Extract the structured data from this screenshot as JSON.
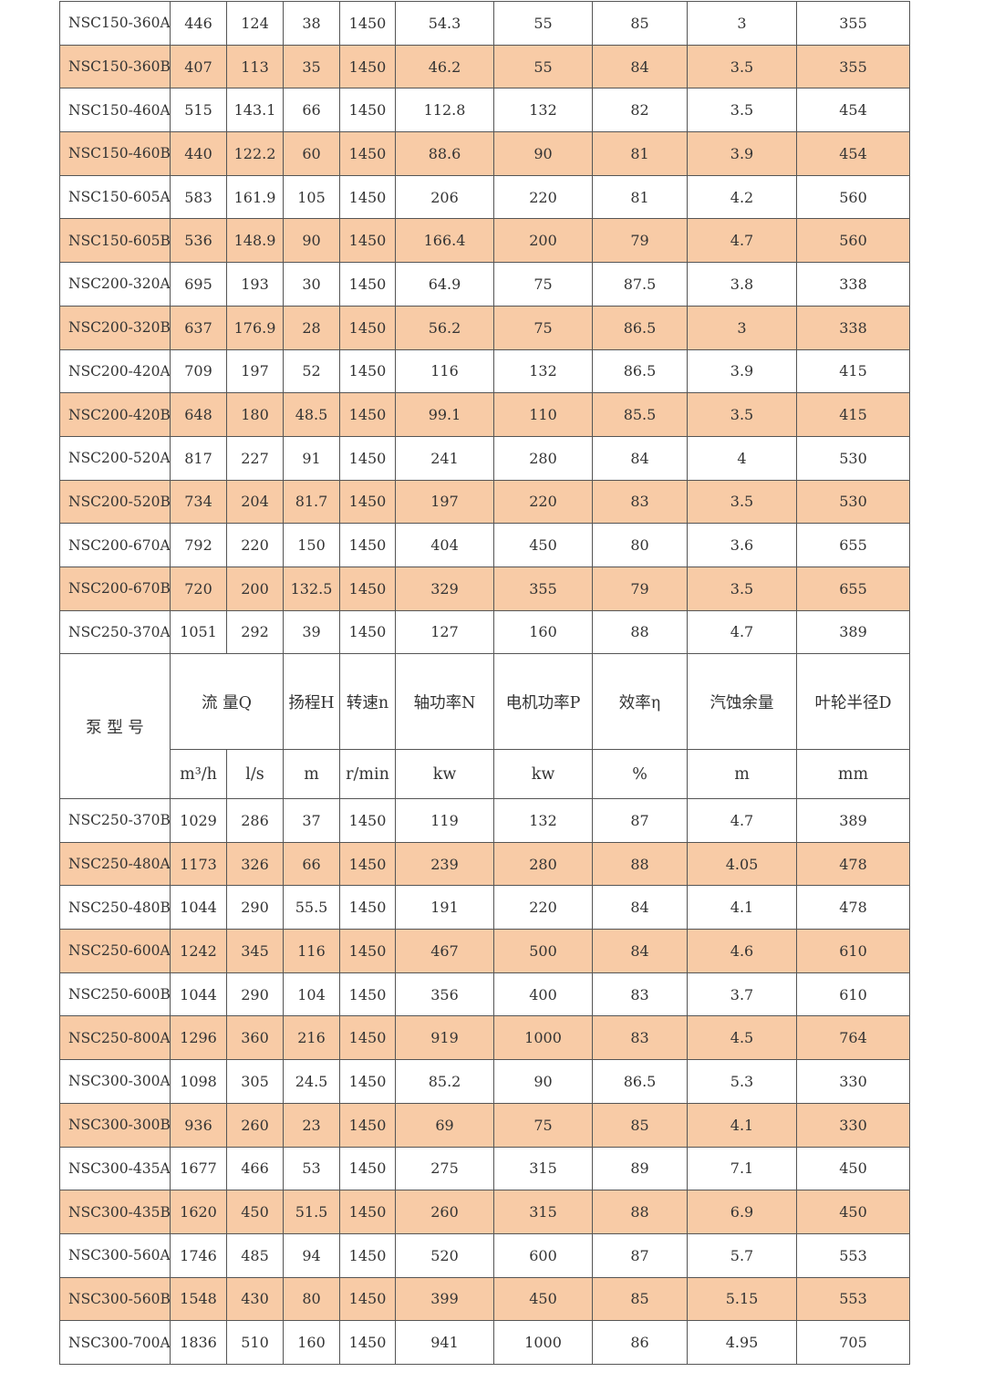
{
  "colors": {
    "alt_row": "#f8cba6",
    "border": "#555555"
  },
  "header": {
    "model": "泵 型 号",
    "flow": "流 量Q",
    "head": "扬程H",
    "speed": "转速n",
    "shaft_power": "轴功率N",
    "motor_power": "电机功率P",
    "efficiency": "效率η",
    "npsh": "汽蚀余量",
    "impeller": "叶轮半径D",
    "units": [
      "m³/h",
      "l/s",
      "m",
      "r/min",
      "kw",
      "kw",
      "%",
      "m",
      "mm"
    ]
  },
  "rows_top": [
    [
      "NSC150-360A",
      "446",
      "124",
      "38",
      "1450",
      "54.3",
      "55",
      "85",
      "3",
      "355"
    ],
    [
      "NSC150-360B",
      "407",
      "113",
      "35",
      "1450",
      "46.2",
      "55",
      "84",
      "3.5",
      "355"
    ],
    [
      "NSC150-460A",
      "515",
      "143.1",
      "66",
      "1450",
      "112.8",
      "132",
      "82",
      "3.5",
      "454"
    ],
    [
      "NSC150-460B",
      "440",
      "122.2",
      "60",
      "1450",
      "88.6",
      "90",
      "81",
      "3.9",
      "454"
    ],
    [
      "NSC150-605A",
      "583",
      "161.9",
      "105",
      "1450",
      "206",
      "220",
      "81",
      "4.2",
      "560"
    ],
    [
      "NSC150-605B",
      "536",
      "148.9",
      "90",
      "1450",
      "166.4",
      "200",
      "79",
      "4.7",
      "560"
    ],
    [
      "NSC200-320A",
      "695",
      "193",
      "30",
      "1450",
      "64.9",
      "75",
      "87.5",
      "3.8",
      "338"
    ],
    [
      "NSC200-320B",
      "637",
      "176.9",
      "28",
      "1450",
      "56.2",
      "75",
      "86.5",
      "3",
      "338"
    ],
    [
      "NSC200-420A",
      "709",
      "197",
      "52",
      "1450",
      "116",
      "132",
      "86.5",
      "3.9",
      "415"
    ],
    [
      "NSC200-420B",
      "648",
      "180",
      "48.5",
      "1450",
      "99.1",
      "110",
      "85.5",
      "3.5",
      "415"
    ],
    [
      "NSC200-520A",
      "817",
      "227",
      "91",
      "1450",
      "241",
      "280",
      "84",
      "4",
      "530"
    ],
    [
      "NSC200-520B",
      "734",
      "204",
      "81.7",
      "1450",
      "197",
      "220",
      "83",
      "3.5",
      "530"
    ],
    [
      "NSC200-670A",
      "792",
      "220",
      "150",
      "1450",
      "404",
      "450",
      "80",
      "3.6",
      "655"
    ],
    [
      "NSC200-670B",
      "720",
      "200",
      "132.5",
      "1450",
      "329",
      "355",
      "79",
      "3.5",
      "655"
    ],
    [
      "NSC250-370A",
      "1051",
      "292",
      "39",
      "1450",
      "127",
      "160",
      "88",
      "4.7",
      "389"
    ]
  ],
  "rows_bottom": [
    [
      "NSC250-370B",
      "1029",
      "286",
      "37",
      "1450",
      "119",
      "132",
      "87",
      "4.7",
      "389"
    ],
    [
      "NSC250-480A",
      "1173",
      "326",
      "66",
      "1450",
      "239",
      "280",
      "88",
      "4.05",
      "478"
    ],
    [
      "NSC250-480B",
      "1044",
      "290",
      "55.5",
      "1450",
      "191",
      "220",
      "84",
      "4.1",
      "478"
    ],
    [
      "NSC250-600A",
      "1242",
      "345",
      "116",
      "1450",
      "467",
      "500",
      "84",
      "4.6",
      "610"
    ],
    [
      "NSC250-600B",
      "1044",
      "290",
      "104",
      "1450",
      "356",
      "400",
      "83",
      "3.7",
      "610"
    ],
    [
      "NSC250-800A",
      "1296",
      "360",
      "216",
      "1450",
      "919",
      "1000",
      "83",
      "4.5",
      "764"
    ],
    [
      "NSC300-300A",
      "1098",
      "305",
      "24.5",
      "1450",
      "85.2",
      "90",
      "86.5",
      "5.3",
      "330"
    ],
    [
      "NSC300-300B",
      "936",
      "260",
      "23",
      "1450",
      "69",
      "75",
      "85",
      "4.1",
      "330"
    ],
    [
      "NSC300-435A",
      "1677",
      "466",
      "53",
      "1450",
      "275",
      "315",
      "89",
      "7.1",
      "450"
    ],
    [
      "NSC300-435B",
      "1620",
      "450",
      "51.5",
      "1450",
      "260",
      "315",
      "88",
      "6.9",
      "450"
    ],
    [
      "NSC300-560A",
      "1746",
      "485",
      "94",
      "1450",
      "520",
      "600",
      "87",
      "5.7",
      "553"
    ],
    [
      "NSC300-560B",
      "1548",
      "430",
      "80",
      "1450",
      "399",
      "450",
      "85",
      "5.15",
      "553"
    ],
    [
      "NSC300-700A",
      "1836",
      "510",
      "160",
      "1450",
      "941",
      "1000",
      "86",
      "4.95",
      "705"
    ]
  ]
}
